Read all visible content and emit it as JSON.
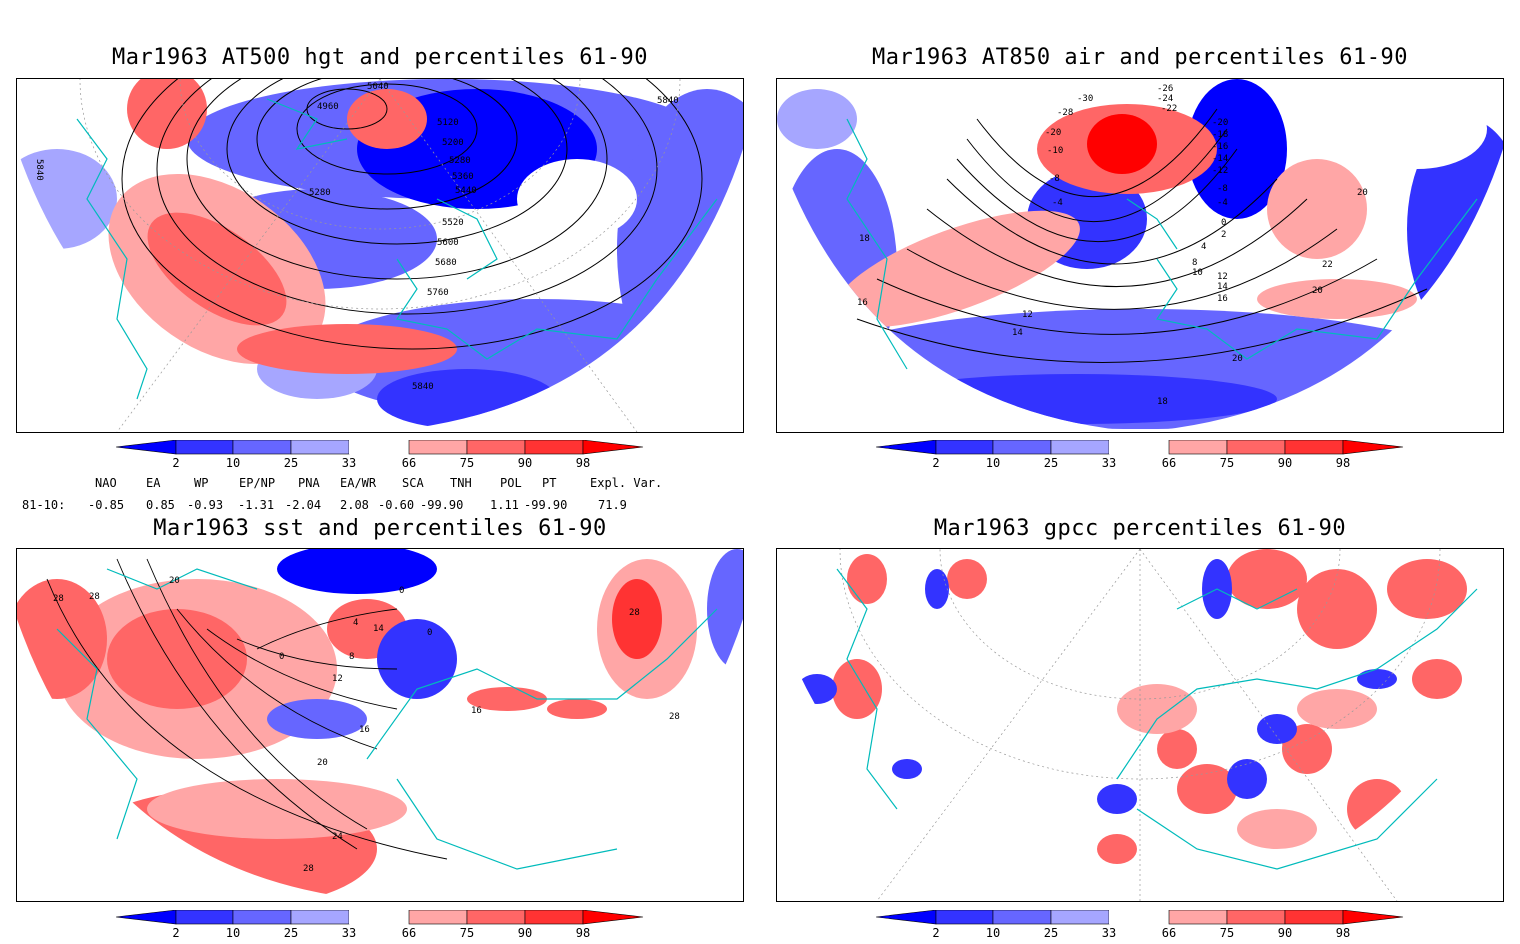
{
  "panels": [
    {
      "title": "Mar1963 AT500 hgt and percentiles 61-90",
      "contour_labels": [
        "5040",
        "4960",
        "5120",
        "5200",
        "5280",
        "5360",
        "5440",
        "5520",
        "5600",
        "5680",
        "5760",
        "5840",
        "5280",
        "5840",
        "5840"
      ]
    },
    {
      "title": "Mar1963 AT850 air and percentiles 61-90",
      "contour_labels": [
        "-26",
        "-24",
        "-22",
        "-30",
        "-28",
        "-20",
        "-18",
        "-16",
        "-14",
        "-12",
        "-10",
        "-8",
        "-6",
        "-4",
        "-2",
        "0",
        "2",
        "4",
        "6",
        "8",
        "10",
        "12",
        "14",
        "16",
        "18",
        "20",
        "22",
        "24",
        "-20",
        "-18",
        "-16",
        "-14",
        "-12",
        "-10",
        "-8",
        "-6",
        "-4",
        "18",
        "16",
        "16",
        "18",
        "20",
        "22",
        "24",
        "12",
        "14",
        "16",
        "18",
        "20",
        "22",
        "20",
        "18"
      ]
    },
    {
      "title": "Mar1963 sst and percentiles 61-90",
      "contour_labels": [
        "28",
        "28",
        "20",
        "0",
        "4",
        "8",
        "12",
        "16",
        "20",
        "24",
        "28",
        "14",
        "4",
        "8",
        "0",
        "0",
        "16",
        "28",
        "28",
        "6",
        "12",
        "8"
      ]
    },
    {
      "title": "Mar1963 gpcc percentiles 61-90",
      "contour_labels": []
    }
  ],
  "colorbar": {
    "ticks": [
      "2",
      "10",
      "25",
      "33",
      "66",
      "75",
      "90",
      "98"
    ],
    "colors": [
      "#0000ff",
      "#3333ff",
      "#6666ff",
      "#a6a6ff",
      "#ffffff",
      "#ffa6a6",
      "#ff6666",
      "#ff3333",
      "#ff0000"
    ]
  },
  "indices": {
    "headers": [
      "NAO",
      "EA",
      "WP",
      "EP/NP",
      "PNA",
      "EA/WR",
      "SCA",
      "TNH",
      "POL",
      "PT",
      "Expl. Var."
    ],
    "row_label": "81-10:",
    "values": [
      "-0.85",
      "0.85",
      "-0.93",
      "-1.31",
      "-2.04",
      "2.08",
      "-0.60",
      "-99.90",
      "1.11",
      "-99.90",
      "71.9"
    ]
  }
}
